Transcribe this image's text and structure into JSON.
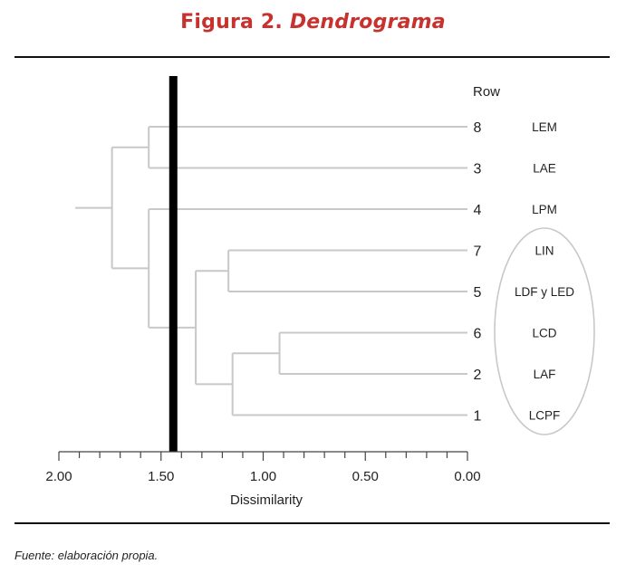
{
  "figure": {
    "title_prefix": "Figura 2. ",
    "title_main": "Dendrograma",
    "source_note": "Fuente: elaboración propia."
  },
  "colors": {
    "title": "#c8322e",
    "branch": "#c8c8c8",
    "cut_line": "#000000",
    "axis": "#444444",
    "ellipse": "#c8c8c8"
  },
  "chart_data": {
    "type": "dendrogram",
    "xlabel": "Dissimilarity",
    "xlim": [
      2.0,
      0.0
    ],
    "xticks": [
      {
        "value": 2.0,
        "label": "2.00"
      },
      {
        "value": 1.5,
        "label": "1.50"
      },
      {
        "value": 1.0,
        "label": "1.00"
      },
      {
        "value": 0.5,
        "label": "0.50"
      },
      {
        "value": 0.0,
        "label": "0.00"
      }
    ],
    "minor_tick_step": 0.1,
    "row_header": "Row",
    "leaves": [
      {
        "row": "8",
        "label": "LEM"
      },
      {
        "row": "3",
        "label": "LAE"
      },
      {
        "row": "4",
        "label": "LPM"
      },
      {
        "row": "7",
        "label": "LIN"
      },
      {
        "row": "5",
        "label": "LDF y LED"
      },
      {
        "row": "6",
        "label": "LCD"
      },
      {
        "row": "2",
        "label": "LAF"
      },
      {
        "row": "1",
        "label": "LCPF"
      }
    ],
    "merges": [
      {
        "a": "6",
        "b": "2",
        "height": 0.92,
        "id": "c1"
      },
      {
        "a": "c1",
        "b": "1",
        "height": 1.15,
        "id": "c2"
      },
      {
        "a": "7",
        "b": "5",
        "height": 1.17,
        "id": "c3"
      },
      {
        "a": "c3",
        "b": "c2",
        "height": 1.33,
        "id": "c4"
      },
      {
        "a": "4",
        "b": "c4",
        "height": 1.56,
        "id": "c5"
      },
      {
        "a": "8",
        "b": "3",
        "height": 1.56,
        "id": "c6"
      },
      {
        "a": "c6",
        "b": "c5",
        "height": 1.74,
        "id": "c7"
      }
    ],
    "root_stub_to": 1.92,
    "cut_line_value": 1.44,
    "highlighted_group": [
      "LIN",
      "LDF y LED",
      "LCD",
      "LAF",
      "LCPF"
    ]
  }
}
